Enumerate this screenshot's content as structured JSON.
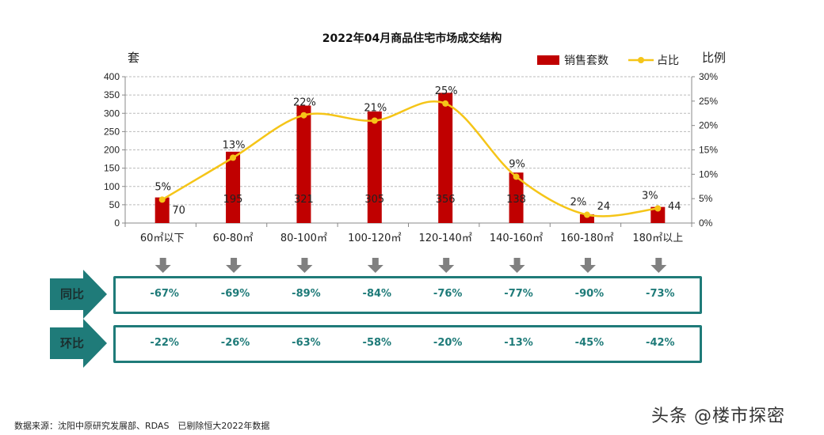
{
  "chart_data": {
    "type": "bar+line",
    "title": "2022年04月商品住宅市场成交结构",
    "left_axis_label": "套",
    "right_axis_label": "比例",
    "categories": [
      "60㎡以下",
      "60-80㎡",
      "80-100㎡",
      "100-120㎡",
      "120-140㎡",
      "140-160㎡",
      "160-180㎡",
      "180㎡以上"
    ],
    "ylim_left": [
      0,
      400
    ],
    "yticks_left": [
      "0",
      "50",
      "100",
      "150",
      "200",
      "250",
      "300",
      "350",
      "400"
    ],
    "ylim_right": [
      0,
      30
    ],
    "yticks_right": [
      "0%",
      "5%",
      "10%",
      "15%",
      "20%",
      "25%",
      "30%"
    ],
    "grid": true,
    "legend_position": "top-right",
    "series": [
      {
        "name": "销售套数",
        "type": "bar",
        "color": "#c00000",
        "values": [
          70,
          195,
          321,
          305,
          356,
          138,
          24,
          44
        ],
        "labels": [
          "70",
          "195",
          "321",
          "305",
          "356",
          "138",
          "24",
          "44"
        ]
      },
      {
        "name": "占比",
        "type": "line",
        "color": "#f5c518",
        "values": [
          4.8,
          13.4,
          22.1,
          21.0,
          24.5,
          9.5,
          1.7,
          3.0
        ],
        "labels": [
          "5%",
          "13%",
          "22%",
          "21%",
          "25%",
          "9%",
          "2%",
          "3%"
        ]
      }
    ]
  },
  "comparisons": [
    {
      "label": "同比",
      "values": [
        "-67%",
        "-69%",
        "-89%",
        "-84%",
        "-76%",
        "-77%",
        "-90%",
        "-73%"
      ]
    },
    {
      "label": "环比",
      "values": [
        "-22%",
        "-26%",
        "-63%",
        "-58%",
        "-20%",
        "-13%",
        "-45%",
        "-42%"
      ]
    }
  ],
  "colors": {
    "accent": "#1f7b79",
    "bar": "#c00000",
    "line": "#f5c518",
    "arrow": "#808080"
  },
  "footer": "数据来源：沈阳中原研究发展部、RDAS　已剔除恒大2022年数据",
  "watermark": "头条 @楼市探密"
}
